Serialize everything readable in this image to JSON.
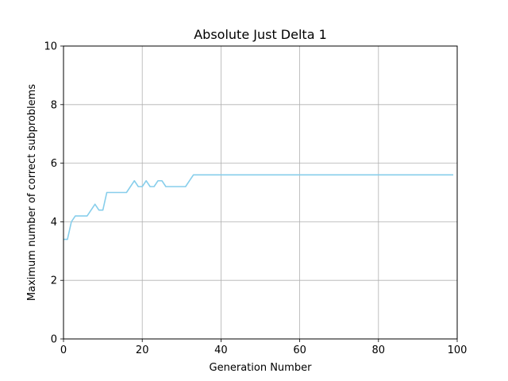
{
  "chart_data": {
    "type": "line",
    "title": "Absolute Just Delta 1",
    "xlabel": "Generation Number",
    "ylabel": "Maximum number of correct subproblems",
    "xlim": [
      0,
      100
    ],
    "ylim": [
      0,
      10
    ],
    "x_ticks": [
      0,
      20,
      40,
      60,
      80,
      100
    ],
    "y_ticks": [
      0,
      2,
      4,
      6,
      8,
      10
    ],
    "grid": true,
    "series": [
      {
        "color": "#87CEEB",
        "x": [
          0,
          1,
          2,
          3,
          4,
          5,
          6,
          7,
          8,
          9,
          10,
          11,
          12,
          13,
          14,
          15,
          16,
          17,
          18,
          19,
          20,
          21,
          22,
          23,
          24,
          25,
          26,
          27,
          28,
          29,
          30,
          31,
          32,
          33,
          99
        ],
        "y": [
          3.4,
          3.4,
          4.0,
          4.2,
          4.2,
          4.2,
          4.2,
          4.4,
          4.6,
          4.4,
          4.4,
          5.0,
          5.0,
          5.0,
          5.0,
          5.0,
          5.0,
          5.2,
          5.4,
          5.2,
          5.2,
          5.4,
          5.2,
          5.2,
          5.4,
          5.4,
          5.2,
          5.2,
          5.2,
          5.2,
          5.2,
          5.2,
          5.4,
          5.6,
          5.6
        ]
      }
    ]
  }
}
